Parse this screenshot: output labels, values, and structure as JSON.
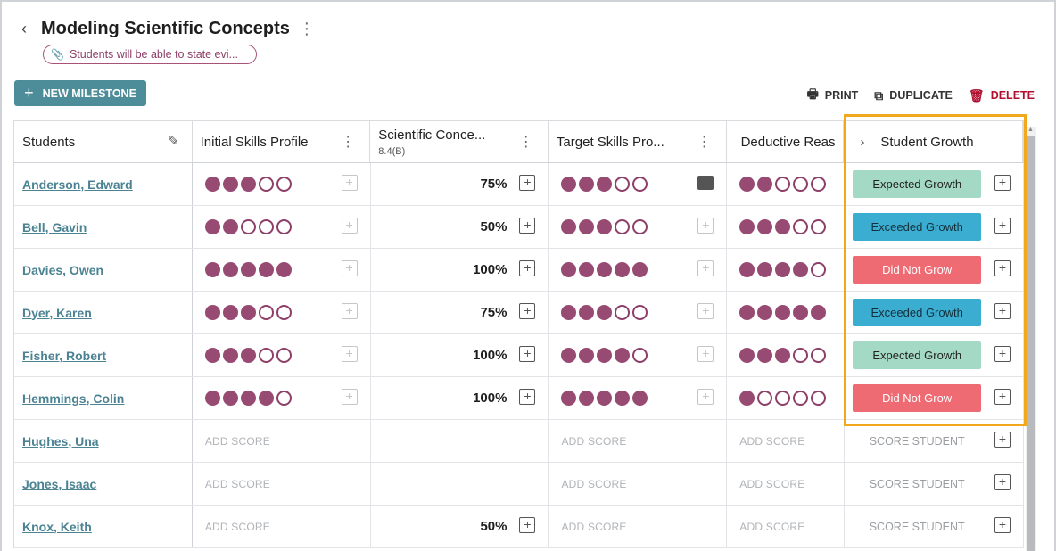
{
  "header": {
    "back_glyph": "‹",
    "title": "Modeling Scientific Concepts",
    "menu_glyph": "⋮",
    "pill_text": "Students will be able to state evi..."
  },
  "toolbar": {
    "new_milestone_label": "NEW MILESTONE",
    "print_label": "PRINT",
    "duplicate_label": "DUPLICATE",
    "delete_label": "DELETE",
    "accent_color": "#4d8c99",
    "delete_color": "#b0102f"
  },
  "columns": [
    {
      "label": "Students"
    },
    {
      "label": "Initial Skills Profile"
    },
    {
      "label": "Scientific Conce...",
      "sub": "8.4(B)"
    },
    {
      "label": "Target Skills Pro..."
    },
    {
      "label": "Deductive Reas"
    },
    {
      "label": "Student Growth"
    }
  ],
  "labels": {
    "add_score": "ADD SCORE",
    "score_student": "SCORE STUDENT"
  },
  "badge_colors": {
    "Expected Growth": "#a4d9c6",
    "Exceeded Growth": "#3aadd0",
    "Did Not Grow": "#ef6b74"
  },
  "rows": [
    {
      "name": "Anderson, Edward",
      "initial": 3,
      "sci": "75%",
      "target": 3,
      "target_note": "filled",
      "deductive": 2,
      "growth": "Expected Growth"
    },
    {
      "name": "Bell, Gavin",
      "initial": 2,
      "sci": "50%",
      "target": 3,
      "target_note": "faint",
      "deductive": 3,
      "growth": "Exceeded Growth"
    },
    {
      "name": "Davies, Owen",
      "initial": 5,
      "sci": "100%",
      "target": 5,
      "target_note": "faint",
      "deductive": 4,
      "growth": "Did Not Grow"
    },
    {
      "name": "Dyer, Karen",
      "initial": 3,
      "sci": "75%",
      "target": 3,
      "target_note": "faint",
      "deductive": 5,
      "growth": "Exceeded Growth"
    },
    {
      "name": "Fisher, Robert",
      "initial": 3,
      "sci": "100%",
      "target": 4,
      "target_note": "faint",
      "deductive": 3,
      "growth": "Expected Growth"
    },
    {
      "name": "Hemmings, Colin",
      "initial": 4,
      "sci": "100%",
      "target": 5,
      "target_note": "faint",
      "deductive": 1,
      "growth": "Did Not Grow"
    },
    {
      "name": "Hughes, Una",
      "initial": null,
      "sci": null,
      "target": null,
      "deductive": null,
      "growth": null
    },
    {
      "name": "Jones, Isaac",
      "initial": null,
      "sci": null,
      "target": null,
      "deductive": null,
      "growth": null
    },
    {
      "name": "Knox, Keith",
      "initial": null,
      "sci": "50%",
      "target": null,
      "deductive": null,
      "growth": null
    }
  ]
}
